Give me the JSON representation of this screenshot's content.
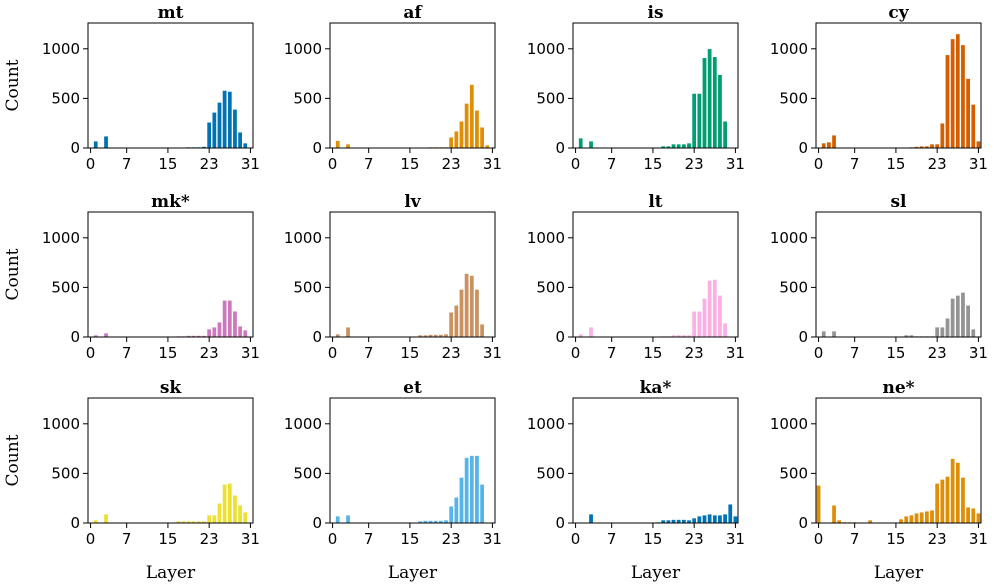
{
  "chart_data": {
    "type": "bar",
    "layout": "3x4 grid of small-multiple bar charts",
    "shared": {
      "xlabel": "Layer",
      "ylabel": "Count",
      "ylim": [
        0,
        1260
      ],
      "yticks": [
        0,
        500,
        1000
      ],
      "xticks": [
        0,
        7,
        15,
        23,
        31
      ],
      "x": [
        0,
        1,
        2,
        3,
        4,
        5,
        6,
        7,
        8,
        9,
        10,
        11,
        12,
        13,
        14,
        15,
        16,
        17,
        18,
        19,
        20,
        21,
        22,
        23,
        24,
        25,
        26,
        27,
        28,
        29,
        30,
        31
      ]
    },
    "panels": [
      {
        "title": "mt",
        "color": "#0173b2",
        "values": [
          0,
          70,
          0,
          120,
          0,
          0,
          0,
          0,
          0,
          0,
          0,
          0,
          0,
          0,
          0,
          0,
          0,
          5,
          5,
          10,
          10,
          10,
          15,
          260,
          360,
          460,
          580,
          570,
          390,
          160,
          50,
          0
        ]
      },
      {
        "title": "af",
        "color": "#de8f05",
        "values": [
          0,
          75,
          0,
          40,
          0,
          0,
          0,
          0,
          0,
          0,
          0,
          0,
          0,
          0,
          0,
          0,
          0,
          5,
          5,
          10,
          10,
          10,
          10,
          110,
          170,
          270,
          450,
          640,
          380,
          210,
          30,
          0
        ]
      },
      {
        "title": "is",
        "color": "#029e73",
        "values": [
          0,
          100,
          0,
          70,
          0,
          0,
          0,
          0,
          0,
          0,
          0,
          0,
          0,
          0,
          0,
          0,
          0,
          20,
          20,
          40,
          40,
          40,
          50,
          550,
          550,
          910,
          1000,
          920,
          740,
          270,
          0,
          0
        ]
      },
      {
        "title": "cy",
        "color": "#d55e00",
        "values": [
          0,
          50,
          60,
          130,
          0,
          0,
          0,
          0,
          0,
          0,
          0,
          0,
          0,
          0,
          0,
          0,
          0,
          5,
          10,
          15,
          20,
          20,
          40,
          40,
          250,
          940,
          1100,
          1150,
          1040,
          700,
          440,
          70
        ]
      },
      {
        "title": "mk*",
        "color": "#cc78bc",
        "values": [
          0,
          20,
          0,
          40,
          0,
          0,
          0,
          0,
          0,
          0,
          0,
          0,
          0,
          0,
          0,
          0,
          0,
          10,
          10,
          15,
          15,
          15,
          15,
          80,
          100,
          150,
          370,
          370,
          260,
          110,
          70,
          0
        ]
      },
      {
        "title": "lv",
        "color": "#ca9161",
        "values": [
          0,
          30,
          0,
          100,
          0,
          0,
          0,
          0,
          0,
          0,
          0,
          0,
          0,
          0,
          0,
          0,
          0,
          20,
          20,
          25,
          25,
          25,
          30,
          250,
          320,
          480,
          640,
          620,
          480,
          130,
          0,
          0
        ]
      },
      {
        "title": "lt",
        "color": "#fbafe4",
        "values": [
          0,
          30,
          0,
          100,
          0,
          0,
          0,
          0,
          0,
          0,
          0,
          0,
          0,
          0,
          0,
          0,
          0,
          10,
          10,
          20,
          20,
          20,
          20,
          260,
          260,
          390,
          570,
          580,
          420,
          140,
          0,
          0
        ]
      },
      {
        "title": "sl",
        "color": "#949494",
        "values": [
          0,
          60,
          0,
          60,
          0,
          0,
          0,
          0,
          0,
          0,
          0,
          0,
          0,
          0,
          0,
          0,
          0,
          20,
          20,
          10,
          10,
          10,
          10,
          100,
          100,
          190,
          390,
          420,
          450,
          320,
          80,
          0
        ]
      },
      {
        "title": "sk",
        "color": "#ece133",
        "values": [
          0,
          30,
          0,
          90,
          0,
          0,
          0,
          0,
          0,
          0,
          0,
          0,
          0,
          0,
          0,
          0,
          0,
          20,
          20,
          20,
          20,
          20,
          20,
          80,
          80,
          200,
          390,
          400,
          280,
          180,
          110,
          0
        ]
      },
      {
        "title": "et",
        "color": "#56b4e9",
        "values": [
          0,
          70,
          0,
          80,
          0,
          0,
          0,
          0,
          0,
          0,
          0,
          0,
          0,
          0,
          0,
          0,
          0,
          20,
          25,
          25,
          25,
          25,
          30,
          170,
          260,
          460,
          660,
          680,
          680,
          390,
          0,
          0
        ]
      },
      {
        "title": "ka*",
        "color": "#0173b2",
        "values": [
          0,
          0,
          0,
          90,
          0,
          0,
          0,
          0,
          0,
          0,
          5,
          0,
          0,
          0,
          0,
          0,
          10,
          30,
          30,
          35,
          35,
          35,
          30,
          50,
          70,
          80,
          90,
          80,
          80,
          90,
          190,
          70
        ]
      },
      {
        "title": "ne*",
        "color": "#de8f05",
        "values": [
          380,
          0,
          0,
          180,
          30,
          10,
          10,
          10,
          0,
          0,
          30,
          0,
          0,
          0,
          0,
          0,
          40,
          70,
          80,
          100,
          110,
          120,
          130,
          400,
          440,
          470,
          650,
          610,
          460,
          160,
          150,
          100
        ]
      }
    ]
  }
}
